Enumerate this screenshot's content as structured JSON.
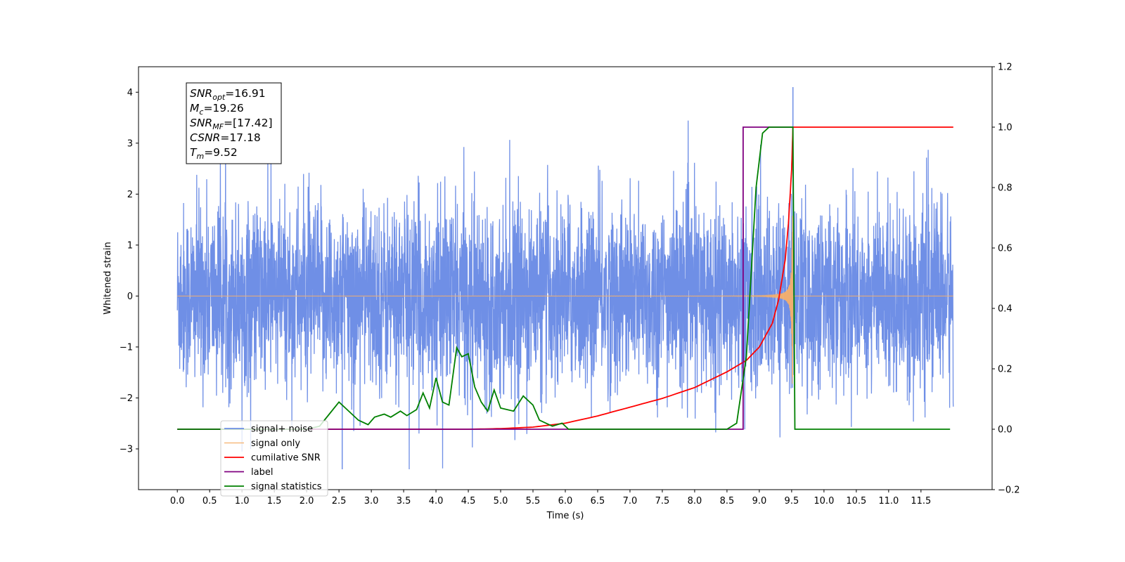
{
  "chart_data": {
    "type": "line",
    "xlabel": "Time (s)",
    "ylabel": "Whitened strain",
    "xlim": [
      -0.6,
      12.6
    ],
    "ylim": [
      -3.8,
      4.5
    ],
    "y2lim": [
      -0.2,
      1.2
    ],
    "x_ticks": [
      "0.0",
      "0.5",
      "1.0",
      "1.5",
      "2.0",
      "2.5",
      "3.0",
      "3.5",
      "4.0",
      "4.5",
      "5.0",
      "5.5",
      "6.0",
      "6.5",
      "7.0",
      "7.5",
      "8.0",
      "8.5",
      "9.0",
      "9.5",
      "10.0",
      "10.5",
      "11.0",
      "11.5"
    ],
    "y_ticks": [
      "−3",
      "−2",
      "−1",
      "0",
      "1",
      "2",
      "3",
      "4"
    ],
    "y2_ticks": [
      "−0.2",
      "0.0",
      "0.2",
      "0.4",
      "0.6",
      "0.8",
      "1.0",
      "1.2"
    ],
    "info_box": [
      {
        "main": "SNR",
        "sub": "opt",
        "value": "=16.91"
      },
      {
        "main": "M",
        "sub": "c",
        "value": "=19.26"
      },
      {
        "main": "SNR",
        "sub": "MF",
        "value": "=[17.42]"
      },
      {
        "main": "CSNR",
        "sub": "",
        "value": "=17.18"
      },
      {
        "main": "T",
        "sub": "m",
        "value": "=9.52"
      }
    ],
    "legend_location": "lower-left",
    "merger_time": 9.52,
    "signal_noise_range": [
      -3.4,
      4.1
    ],
    "series": [
      {
        "name": "signal+ noise",
        "color": "#6f8fe6",
        "axis": "left",
        "description_values": {
          "noise_sigma": 0.9,
          "peak": 4.1,
          "min": -3.4
        }
      },
      {
        "name": "signal only",
        "color": "#f5b06a",
        "axis": "left",
        "description_values": {
          "amplitude_at_8s": 0.1,
          "amplitude_at_merger": 3.2
        }
      },
      {
        "name": "cumilative SNR",
        "color": "#ff0000",
        "axis": "right",
        "x": [
          0.0,
          4.5,
          5.0,
          5.5,
          6.0,
          6.5,
          7.0,
          7.5,
          8.0,
          8.5,
          8.8,
          9.0,
          9.2,
          9.3,
          9.4,
          9.45,
          9.5,
          9.52,
          12.0
        ],
        "y": [
          0.0,
          0.0,
          0.002,
          0.007,
          0.02,
          0.044,
          0.073,
          0.102,
          0.138,
          0.19,
          0.228,
          0.272,
          0.35,
          0.43,
          0.56,
          0.68,
          0.86,
          1.0,
          1.0
        ]
      },
      {
        "name": "label",
        "color": "#800080",
        "axis": "right",
        "x": [
          0.0,
          8.75,
          8.75,
          9.52,
          9.52
        ],
        "y": [
          0.0,
          0.0,
          1.0,
          1.0,
          1.0
        ]
      },
      {
        "name": "signal statistics",
        "color": "#008000",
        "axis": "right",
        "x": [
          0.0,
          2.0,
          2.2,
          2.35,
          2.5,
          2.6,
          2.8,
          2.95,
          3.05,
          3.2,
          3.3,
          3.45,
          3.55,
          3.7,
          3.8,
          3.9,
          4.0,
          4.1,
          4.2,
          4.32,
          4.4,
          4.5,
          4.6,
          4.7,
          4.8,
          4.9,
          5.0,
          5.2,
          5.35,
          5.5,
          5.6,
          5.8,
          5.95,
          6.05,
          6.2,
          8.5,
          8.65,
          8.8,
          8.95,
          9.05,
          9.15,
          9.45,
          9.52,
          9.55,
          11.95
        ],
        "y": [
          0.0,
          0.0,
          0.01,
          0.05,
          0.09,
          0.07,
          0.03,
          0.015,
          0.04,
          0.05,
          0.04,
          0.06,
          0.045,
          0.065,
          0.12,
          0.07,
          0.17,
          0.09,
          0.08,
          0.27,
          0.24,
          0.25,
          0.14,
          0.09,
          0.06,
          0.13,
          0.07,
          0.06,
          0.11,
          0.08,
          0.03,
          0.01,
          0.02,
          0.0,
          0.0,
          0.0,
          0.02,
          0.24,
          0.8,
          0.98,
          1.0,
          1.0,
          1.0,
          0.0,
          0.0
        ]
      }
    ]
  }
}
